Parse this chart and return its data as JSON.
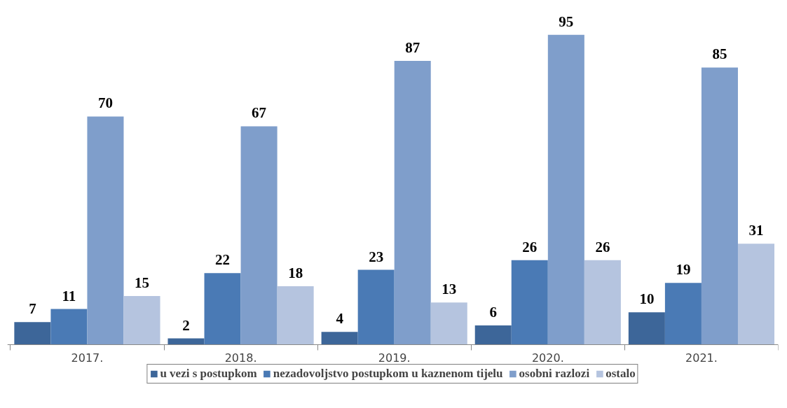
{
  "chart_data": {
    "type": "bar",
    "categories": [
      "2017.",
      "2018.",
      "2019.",
      "2020.",
      "2021."
    ],
    "series": [
      {
        "name": "u vezi s postupkom",
        "color": "#3d6699",
        "values": [
          7,
          2,
          4,
          6,
          10
        ]
      },
      {
        "name": "nezadovoljstvo postupkom u kaznenom tijelu",
        "color": "#4a7ab5",
        "values": [
          11,
          22,
          23,
          26,
          19
        ]
      },
      {
        "name": "osobni razlozi",
        "color": "#7f9ecb",
        "values": [
          70,
          67,
          87,
          95,
          85
        ]
      },
      {
        "name": "ostalo",
        "color": "#b5c4df",
        "values": [
          15,
          18,
          13,
          26,
          31
        ]
      }
    ],
    "data_labels": true,
    "legend": "bottom",
    "grid": false
  }
}
